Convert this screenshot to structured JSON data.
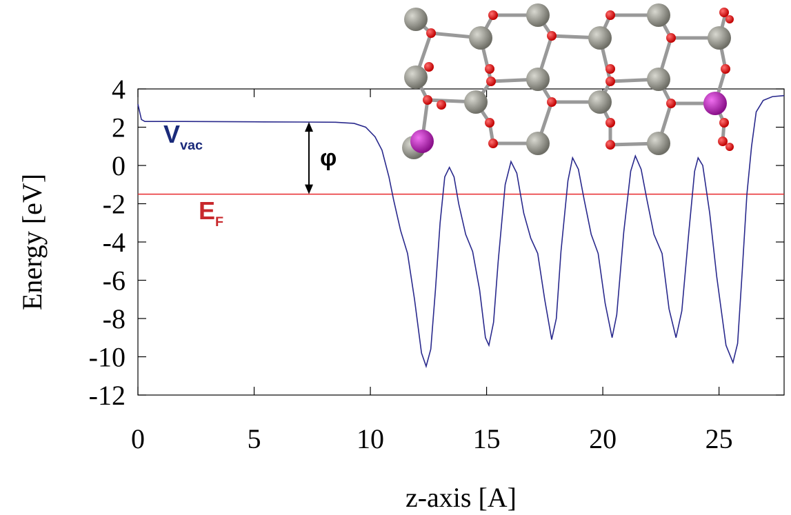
{
  "chart_data": {
    "type": "line",
    "xlabel": "z-axis [A]",
    "ylabel": "Energy [eV]",
    "x": [
      0,
      0.15,
      0.3,
      2,
      5,
      7,
      8.5,
      9.3,
      9.8,
      10.2,
      10.5,
      10.8,
      11.0,
      11.3,
      11.6,
      11.9,
      12.2,
      12.4,
      12.6,
      12.8,
      13.0,
      13.2,
      13.4,
      13.6,
      13.8,
      14.1,
      14.4,
      14.7,
      14.95,
      15.1,
      15.3,
      15.5,
      15.8,
      16.05,
      16.3,
      16.6,
      16.9,
      17.2,
      17.5,
      17.8,
      18.0,
      18.2,
      18.5,
      18.7,
      18.95,
      19.2,
      19.5,
      19.8,
      20.1,
      20.4,
      20.6,
      20.9,
      21.2,
      21.4,
      21.65,
      21.9,
      22.2,
      22.55,
      22.85,
      23.15,
      23.4,
      23.7,
      23.95,
      24.1,
      24.3,
      24.6,
      24.9,
      25.3,
      25.6,
      25.8,
      26.0,
      26.2,
      26.4,
      26.6,
      26.9,
      27.3,
      27.8
    ],
    "series": [
      {
        "color": "#28288c",
        "values": [
          3.2,
          2.4,
          2.3,
          2.3,
          2.28,
          2.27,
          2.26,
          2.2,
          2.0,
          1.5,
          0.8,
          -0.6,
          -1.8,
          -3.4,
          -4.6,
          -7.0,
          -9.8,
          -10.5,
          -9.6,
          -6.5,
          -3.0,
          -0.6,
          -0.1,
          -0.6,
          -2.0,
          -3.6,
          -4.5,
          -6.5,
          -9.0,
          -9.4,
          -8.2,
          -5.0,
          -1.0,
          0.2,
          -0.4,
          -2.5,
          -3.8,
          -4.6,
          -7.0,
          -9.1,
          -8.0,
          -4.5,
          -0.8,
          0.4,
          -0.2,
          -1.8,
          -3.6,
          -4.6,
          -7.2,
          -9.0,
          -7.8,
          -3.5,
          -0.3,
          0.5,
          -0.2,
          -1.8,
          -3.6,
          -4.6,
          -7.5,
          -9.0,
          -7.6,
          -3.5,
          -0.3,
          0.4,
          0.0,
          -2.5,
          -5.8,
          -9.4,
          -10.3,
          -9.3,
          -5.5,
          -1.5,
          1.0,
          2.8,
          3.4,
          3.6,
          3.65
        ]
      }
    ],
    "fermi_level": -1.5,
    "fermi_color": "#e8282c",
    "vacuum_level": 2.27,
    "annotations": {
      "vac": {
        "text": "V",
        "sub": "vac",
        "color": "#1a2a7a"
      },
      "fermi": {
        "text": "E",
        "sub": "F",
        "color": "#c8282c"
      },
      "phi": "φ"
    },
    "xlim": [
      0,
      27.8
    ],
    "xticks": [
      0,
      5,
      10,
      15,
      20,
      25
    ],
    "ylim": [
      -12,
      4
    ],
    "yticks": [
      -12,
      -10,
      -8,
      -6,
      -4,
      -2,
      0,
      2,
      4
    ],
    "grid": false
  }
}
